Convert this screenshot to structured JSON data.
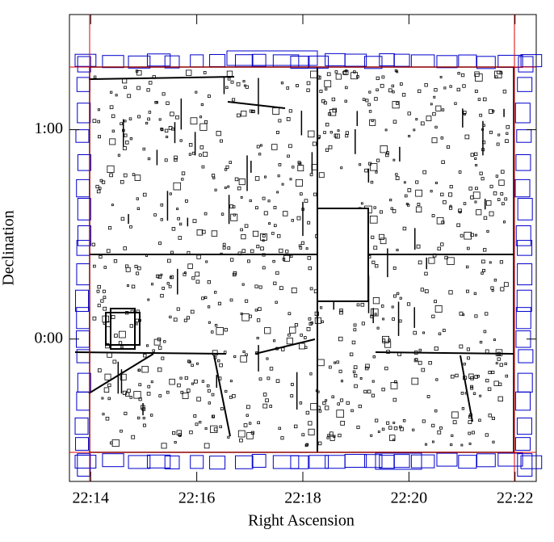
{
  "chart_data": {
    "type": "mask-map",
    "xlabel": "Right Ascension",
    "ylabel": "Declination",
    "xlim": [
      1333.6,
      1342.4
    ],
    "xticks": [
      {
        "value": 1334,
        "label": "22:14"
      },
      {
        "value": 1336,
        "label": "22:16"
      },
      {
        "value": 1338,
        "label": "22:18"
      },
      {
        "value": 1340,
        "label": "22:20"
      },
      {
        "value": 1342,
        "label": "22:22"
      }
    ],
    "ylim": [
      -0.68,
      1.55
    ],
    "yticks": [
      {
        "value": 0,
        "label": "0:00"
      },
      {
        "value": 1,
        "label": "1:00"
      }
    ]
  }
}
